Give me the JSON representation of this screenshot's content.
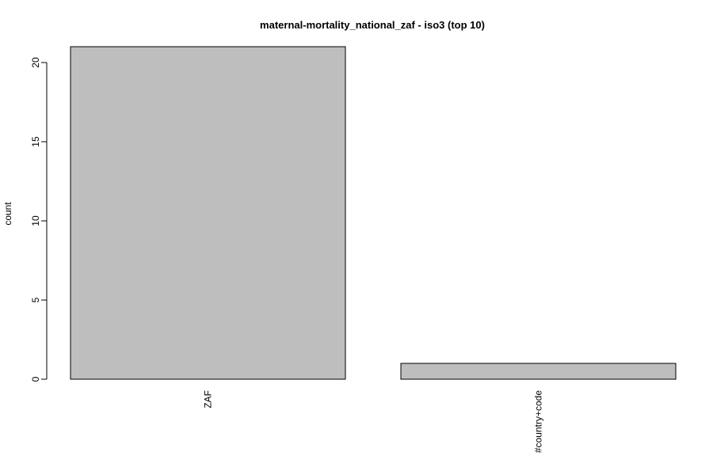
{
  "chart_data": {
    "type": "bar",
    "title": "maternal-mortality_national_zaf - iso3 (top 10)",
    "xlabel": "",
    "ylabel": "count",
    "categories": [
      "ZAF",
      "#country+code"
    ],
    "values": [
      21,
      1
    ],
    "yticks": [
      0,
      5,
      10,
      15,
      20
    ],
    "ylim": [
      0,
      21
    ],
    "bar_fill": "#bebebe",
    "bar_stroke": "#000000",
    "grid": false,
    "legend": "none"
  }
}
